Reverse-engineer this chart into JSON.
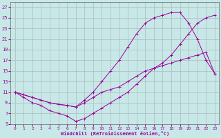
{
  "xlabel": "Windchill (Refroidissement éolien,°C)",
  "bg_color": "#c8e8e8",
  "line_color": "#990099",
  "xlim": [
    -0.5,
    23.5
  ],
  "ylim": [
    5,
    28
  ],
  "xticks": [
    0,
    1,
    2,
    3,
    4,
    5,
    6,
    7,
    8,
    9,
    10,
    11,
    12,
    13,
    14,
    15,
    16,
    17,
    18,
    19,
    20,
    21,
    22,
    23
  ],
  "yticks": [
    5,
    7,
    9,
    11,
    13,
    15,
    17,
    19,
    21,
    23,
    25,
    27
  ],
  "grid_color": "#aabbbb",
  "line1_x": [
    0,
    1,
    2,
    3,
    4,
    5,
    6,
    7,
    8,
    9,
    10,
    11,
    12,
    13,
    14,
    15,
    16,
    17,
    18,
    19,
    20,
    21,
    22,
    23
  ],
  "line1_y": [
    11,
    10.5,
    10,
    9.5,
    9,
    8.7,
    8.5,
    8.2,
    9,
    10,
    11,
    11.5,
    12,
    13,
    14,
    15,
    15.5,
    16,
    16.5,
    17,
    17.5,
    18,
    18.5,
    14.5
  ],
  "line2_x": [
    0,
    1,
    2,
    3,
    4,
    5,
    6,
    7,
    8,
    9,
    10,
    11,
    12,
    13,
    14,
    15,
    16,
    17,
    18,
    19,
    20,
    21,
    22,
    23
  ],
  "line2_y": [
    11,
    10.5,
    10,
    9.5,
    9,
    8.7,
    8.5,
    8.2,
    9.5,
    11,
    13,
    15,
    17,
    19.5,
    22,
    24,
    25,
    25.5,
    26,
    26,
    24,
    21,
    17,
    14.5
  ],
  "line3_x": [
    0,
    1,
    2,
    3,
    4,
    5,
    6,
    7,
    8,
    9,
    10,
    11,
    12,
    13,
    14,
    15,
    16,
    17,
    18,
    19,
    20,
    21,
    22,
    23
  ],
  "line3_y": [
    11,
    10,
    9,
    8.5,
    7.5,
    7,
    6.5,
    5.5,
    6,
    7,
    8,
    9,
    10,
    11,
    12.5,
    14,
    15.5,
    16.5,
    18,
    20,
    22,
    24,
    25,
    25.5
  ]
}
